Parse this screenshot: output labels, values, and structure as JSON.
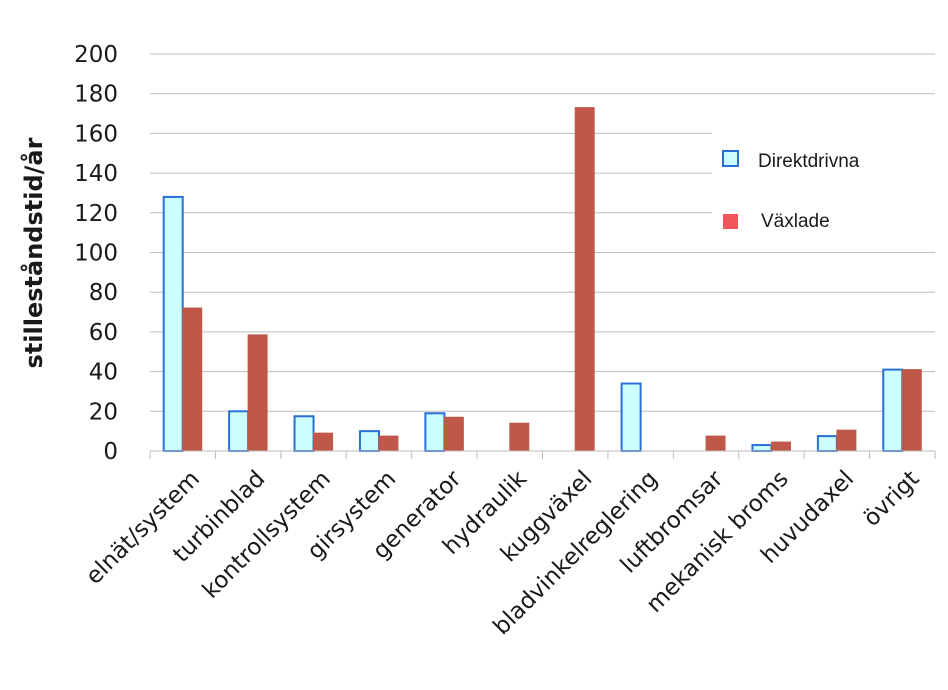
{
  "chart_data": {
    "type": "bar",
    "ylabel": "stilleståndstid/år",
    "xlabel": "",
    "ylim": [
      0,
      200
    ],
    "yticks": [
      0,
      20,
      40,
      60,
      80,
      100,
      120,
      140,
      160,
      180,
      200
    ],
    "grid": "horizontal",
    "legend_position": "top-right",
    "categories": [
      "elnät/system",
      "turbinblad",
      "kontrollsystem",
      "girsystem",
      "generator",
      "hydraulik",
      "kuggväxel",
      "bladvinkelreglering",
      "luftbromsar",
      "mekanisk broms",
      "huvudaxel",
      "övrigt"
    ],
    "series": [
      {
        "name": "Direktdrivna",
        "color": "#ccffff",
        "edge": "#2a6fd6",
        "values": [
          128,
          20,
          17.5,
          10,
          19,
          0,
          0,
          34,
          0,
          3,
          7.5,
          41
        ]
      },
      {
        "name": "Växlade",
        "color": "#c0584a",
        "edge": "#c0584a",
        "values": [
          72,
          58.5,
          9,
          7.5,
          17,
          14,
          173,
          0,
          7.5,
          4.5,
          10.5,
          41
        ]
      }
    ]
  }
}
